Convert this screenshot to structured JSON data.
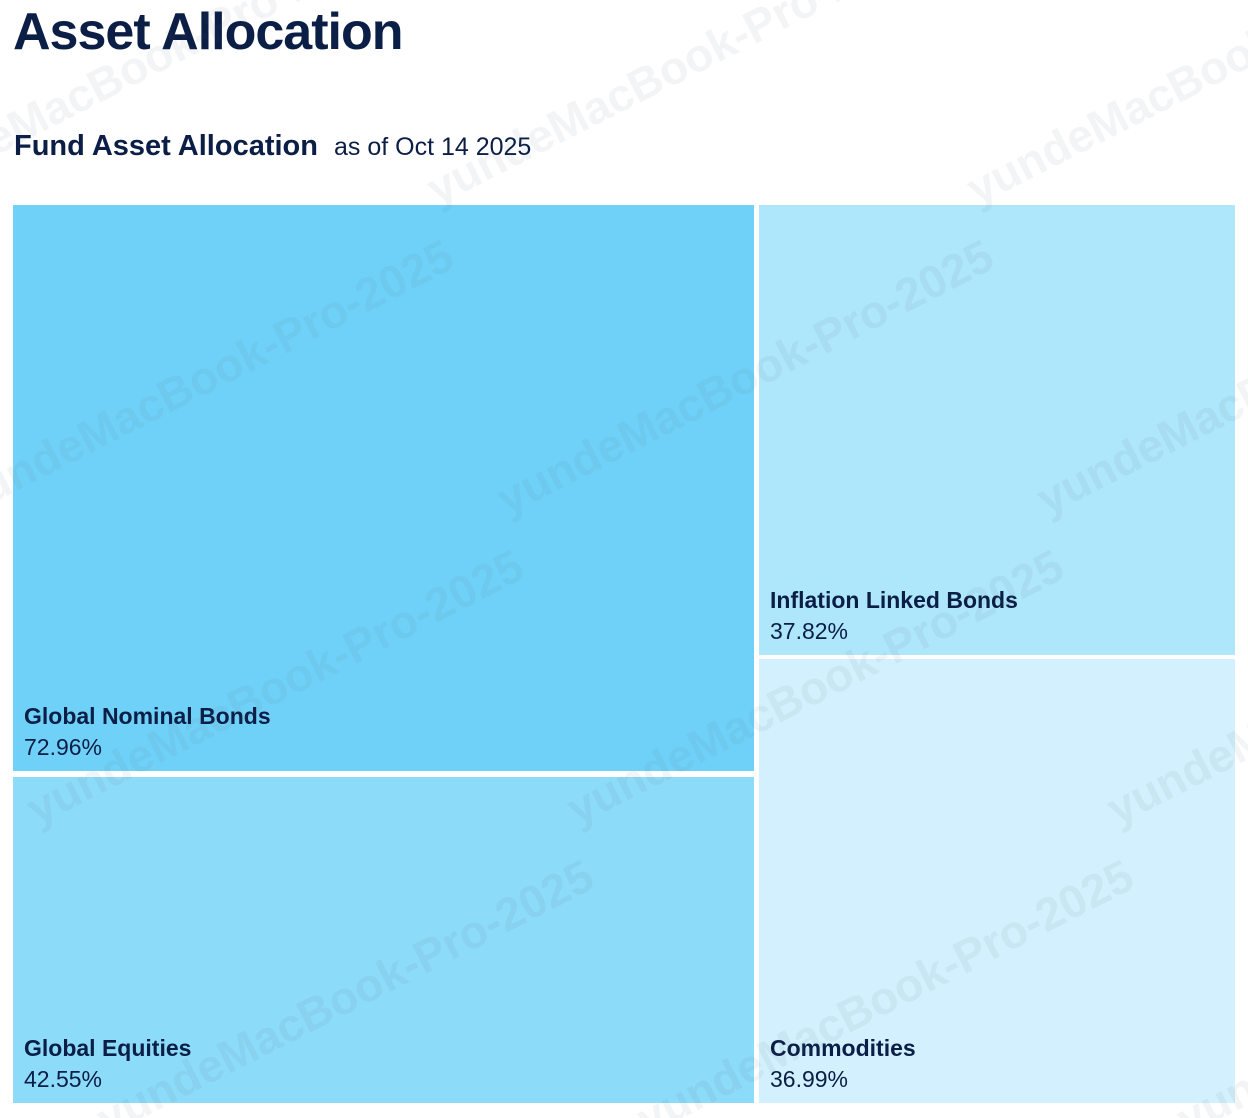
{
  "page": {
    "title": "Asset Allocation"
  },
  "section": {
    "title": "Fund Asset Allocation",
    "as_of": "as of Oct 14 2025"
  },
  "watermark": {
    "text": "yundeMacBook-Pro-2025"
  },
  "colors": {
    "heading_text": "#0B1E46",
    "background": "#FFFFFF",
    "tile_gap": "#FFFFFF"
  },
  "chart_data": {
    "type": "treemap",
    "title": "Fund Asset Allocation",
    "as_of_date": "Oct 14 2025",
    "categories": [
      "Global Nominal Bonds",
      "Global Equities",
      "Inflation Linked Bonds",
      "Commodities"
    ],
    "values": [
      72.96,
      42.55,
      37.82,
      36.99
    ],
    "value_labels": [
      "72.96%",
      "42.55%",
      "37.82%",
      "36.99%"
    ],
    "colors": [
      "#70D1F8",
      "#8CDBF9",
      "#AEE6FB",
      "#D2F0FD"
    ],
    "legend_position": "none",
    "layout": "left column holds Global Nominal Bonds over Global Equities; right column holds Inflation Linked Bonds over Commodities; labels bottom-left of each tile"
  },
  "tiles": [
    {
      "name": "Global Nominal Bonds",
      "value": "72.96%",
      "color": "#70D1F8"
    },
    {
      "name": "Global Equities",
      "value": "42.55%",
      "color": "#8CDBF9"
    },
    {
      "name": "Inflation Linked Bonds",
      "value": "37.82%",
      "color": "#AEE6FB"
    },
    {
      "name": "Commodities",
      "value": "36.99%",
      "color": "#D2F0FD"
    }
  ]
}
